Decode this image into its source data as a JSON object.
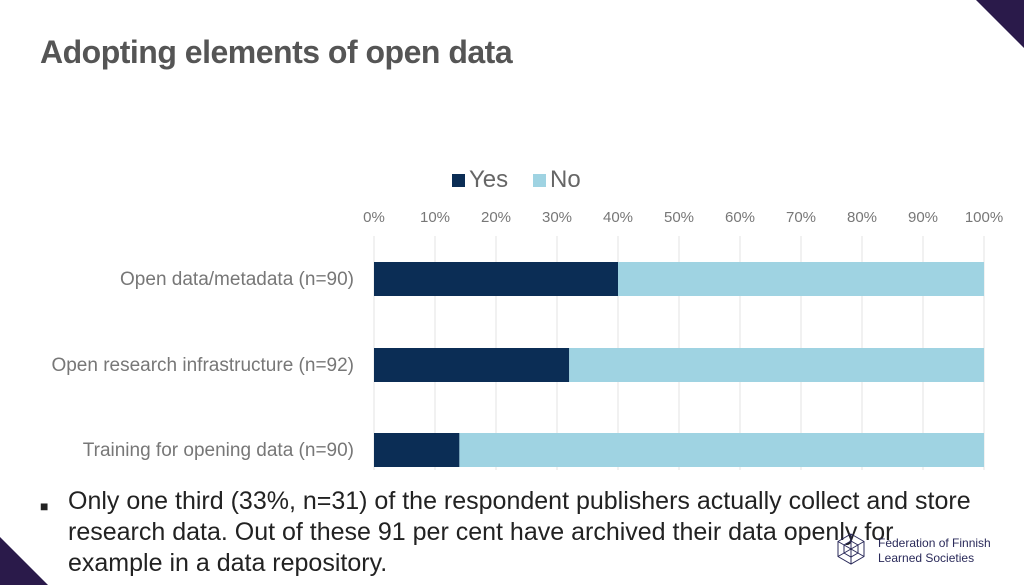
{
  "slide": {
    "title": "Adopting elements of open data",
    "bullet": "Only one third (33%, n=31) of the respondent publishers actually collect and store research data. Out of these 91 per cent have archived their data openly for example in a data repository.",
    "logo": {
      "line1": "Federation of Finnish",
      "line2": "Learned Societies"
    },
    "colors": {
      "accent": "#2a1a4a"
    }
  },
  "chart_data": {
    "type": "bar",
    "orientation": "horizontal",
    "stacked": true,
    "categories": [
      "Open data/metadata (n=90)",
      "Open research infrastructure (n=92)",
      "Training for opening data (n=90)"
    ],
    "series": [
      {
        "name": "Yes",
        "values": [
          40,
          32,
          14
        ],
        "color": "#0b2d55"
      },
      {
        "name": "No",
        "values": [
          60,
          68,
          86
        ],
        "color": "#9fd3e2"
      }
    ],
    "xlim": [
      0,
      100
    ],
    "xticks": [
      "0%",
      "10%",
      "20%",
      "30%",
      "40%",
      "50%",
      "60%",
      "70%",
      "80%",
      "90%",
      "100%"
    ],
    "grid": true,
    "legend_position": "top"
  }
}
